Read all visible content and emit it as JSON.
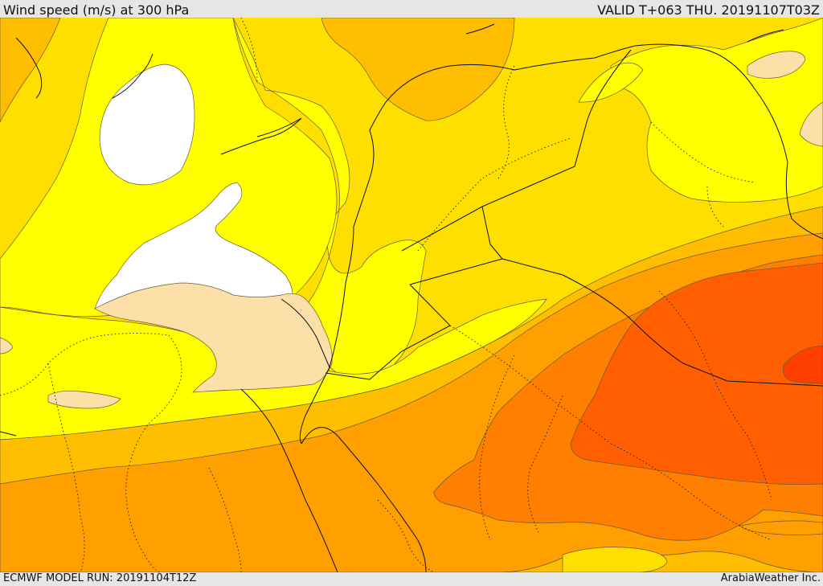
{
  "header": {
    "title": "Wind speed (m/s) at 300 hPa",
    "valid_time": "VALID T+063 THU. 20191107T03Z"
  },
  "footer": {
    "model_run": "ECMWF MODEL RUN: 20191104T12Z",
    "credit": "ArabiaWeather Inc."
  },
  "colors": {
    "very_light_yellow": "#ffff00",
    "white": "#ffffff",
    "beige": "#fddfa8",
    "gold": "#ffdf00",
    "amber": "#ffbf00",
    "orange": "#ff9f00",
    "dark_orange": "#ff7f00",
    "red_orange": "#ff5f00",
    "red": "#ff3f00"
  }
}
